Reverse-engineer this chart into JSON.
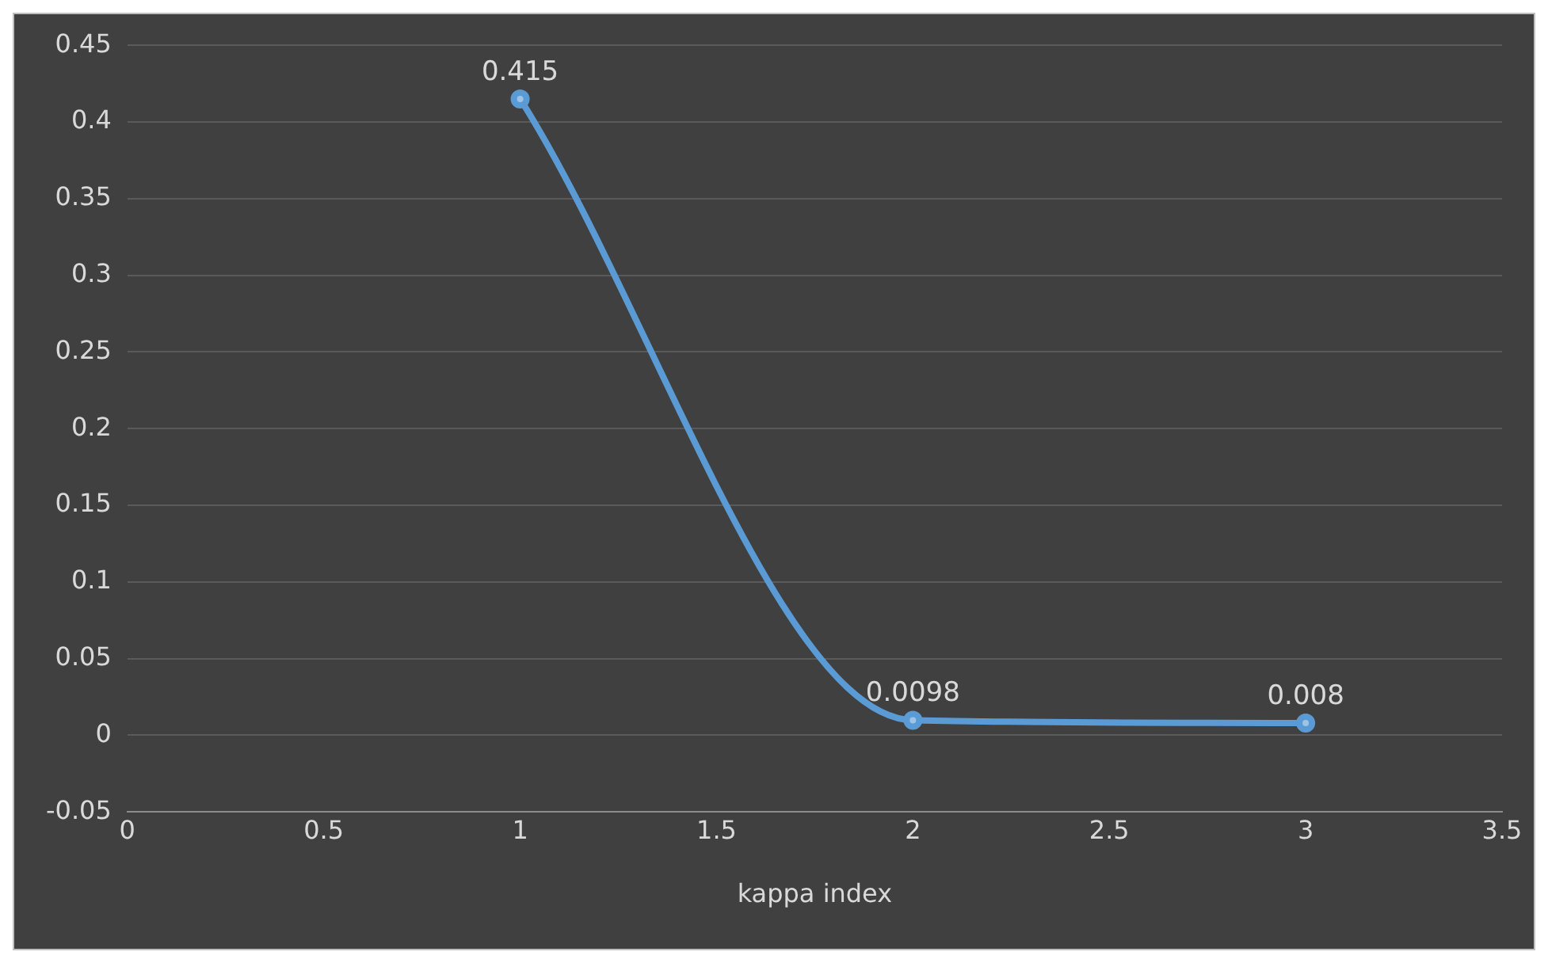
{
  "chart_data": {
    "type": "line",
    "xlabel": "kappa index",
    "x": [
      1,
      2,
      3
    ],
    "series": [
      {
        "color": "#5b9bd5",
        "values": [
          0.415,
          0.0098,
          0.008
        ]
      }
    ],
    "xlim": [
      0,
      3.5
    ],
    "xticks": [
      0,
      0.5,
      1,
      1.5,
      2,
      2.5,
      3,
      3.5
    ],
    "ylim": [
      -0.05,
      0.45
    ],
    "yticks": [
      -0.05,
      0,
      0.05,
      0.1,
      0.15,
      0.2,
      0.25,
      0.3,
      0.35,
      0.4,
      0.45
    ],
    "grid": "y",
    "legend": false,
    "marker": "circle",
    "line_style": "solid",
    "data_labels": true
  }
}
